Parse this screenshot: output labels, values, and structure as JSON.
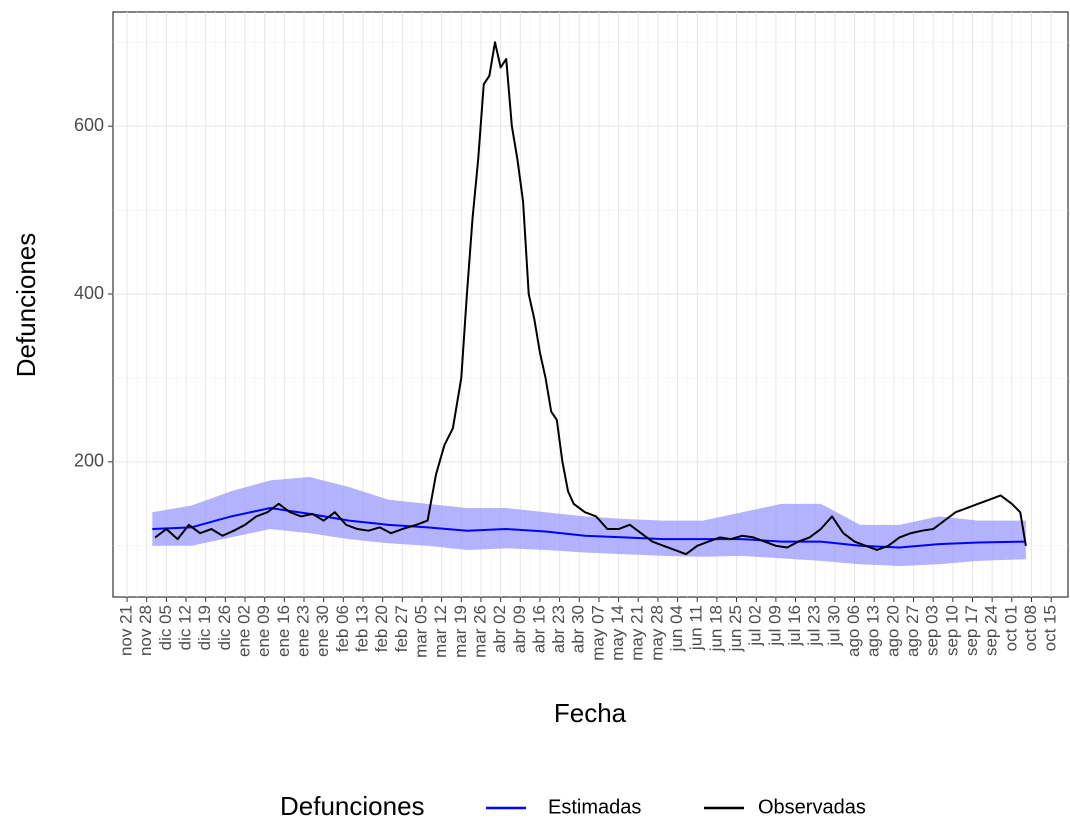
{
  "chart_data": {
    "type": "line",
    "x_label": "Fecha",
    "y_label": "Defunciones",
    "legend_title": "Defunciones",
    "legend_position": "bottom",
    "grid": true,
    "xlim": [
      "11-16",
      "10-21"
    ],
    "ylim": [
      39,
      736
    ],
    "yticks": [
      200,
      400,
      600
    ],
    "xticks": [
      {
        "value": "11-21",
        "label": "nov 21"
      },
      {
        "value": "11-28",
        "label": "nov 28"
      },
      {
        "value": "12-05",
        "label": "dic 05"
      },
      {
        "value": "12-12",
        "label": "dic 12"
      },
      {
        "value": "12-19",
        "label": "dic 19"
      },
      {
        "value": "12-26",
        "label": "dic 26"
      },
      {
        "value": "01-02",
        "label": "ene 02"
      },
      {
        "value": "01-09",
        "label": "ene 09"
      },
      {
        "value": "01-16",
        "label": "ene 16"
      },
      {
        "value": "01-23",
        "label": "ene 23"
      },
      {
        "value": "01-30",
        "label": "ene 30"
      },
      {
        "value": "02-06",
        "label": "feb 06"
      },
      {
        "value": "02-13",
        "label": "feb 13"
      },
      {
        "value": "02-20",
        "label": "feb 20"
      },
      {
        "value": "02-27",
        "label": "feb 27"
      },
      {
        "value": "03-05",
        "label": "mar 05"
      },
      {
        "value": "03-12",
        "label": "mar 12"
      },
      {
        "value": "03-19",
        "label": "mar 19"
      },
      {
        "value": "03-26",
        "label": "mar 26"
      },
      {
        "value": "04-02",
        "label": "abr 02"
      },
      {
        "value": "04-09",
        "label": "abr 09"
      },
      {
        "value": "04-16",
        "label": "abr 16"
      },
      {
        "value": "04-23",
        "label": "abr 23"
      },
      {
        "value": "04-30",
        "label": "abr 30"
      },
      {
        "value": "05-07",
        "label": "may 07"
      },
      {
        "value": "05-14",
        "label": "may 14"
      },
      {
        "value": "05-21",
        "label": "may 21"
      },
      {
        "value": "05-28",
        "label": "may 28"
      },
      {
        "value": "06-04",
        "label": "jun 04"
      },
      {
        "value": "06-11",
        "label": "jun 11"
      },
      {
        "value": "06-18",
        "label": "jun 18"
      },
      {
        "value": "06-25",
        "label": "jun 25"
      },
      {
        "value": "07-02",
        "label": "jul 02"
      },
      {
        "value": "07-09",
        "label": "jul 09"
      },
      {
        "value": "07-16",
        "label": "jul 16"
      },
      {
        "value": "07-23",
        "label": "jul 23"
      },
      {
        "value": "07-30",
        "label": "jul 30"
      },
      {
        "value": "08-06",
        "label": "ago 06"
      },
      {
        "value": "08-13",
        "label": "ago 13"
      },
      {
        "value": "08-20",
        "label": "ago 20"
      },
      {
        "value": "08-27",
        "label": "ago 27"
      },
      {
        "value": "09-03",
        "label": "sep 03"
      },
      {
        "value": "09-10",
        "label": "sep 10"
      },
      {
        "value": "09-17",
        "label": "sep 17"
      },
      {
        "value": "09-24",
        "label": "sep 24"
      },
      {
        "value": "10-01",
        "label": "oct 01"
      },
      {
        "value": "10-08",
        "label": "oct 08"
      },
      {
        "value": "10-15",
        "label": "oct 15"
      }
    ],
    "series": [
      {
        "name": "Estimadas",
        "color": "#0000ff",
        "band_color": "#9999ff",
        "x": [
          "11-30",
          "12-14",
          "12-28",
          "01-11",
          "01-25",
          "02-08",
          "02-22",
          "03-07",
          "03-21",
          "04-04",
          "04-18",
          "05-02",
          "05-16",
          "05-30",
          "06-13",
          "06-27",
          "07-11",
          "07-25",
          "08-08",
          "08-22",
          "09-05",
          "09-19",
          "10-06"
        ],
        "values": [
          120,
          122,
          135,
          145,
          138,
          130,
          125,
          122,
          118,
          120,
          117,
          112,
          110,
          108,
          108,
          108,
          105,
          105,
          100,
          98,
          102,
          104,
          105
        ],
        "lower": [
          100,
          100,
          110,
          120,
          115,
          108,
          103,
          100,
          95,
          97,
          95,
          92,
          90,
          88,
          87,
          88,
          85,
          82,
          78,
          76,
          78,
          82,
          84
        ],
        "upper": [
          140,
          148,
          165,
          178,
          182,
          170,
          155,
          150,
          145,
          145,
          140,
          135,
          132,
          130,
          130,
          140,
          150,
          150,
          125,
          125,
          135,
          130,
          130
        ]
      },
      {
        "name": "Observadas",
        "color": "#000000",
        "x": [
          "12-01",
          "12-05",
          "12-09",
          "12-13",
          "12-17",
          "12-21",
          "12-25",
          "12-29",
          "01-02",
          "01-06",
          "01-10",
          "01-14",
          "01-18",
          "01-22",
          "01-26",
          "01-30",
          "02-03",
          "02-07",
          "02-11",
          "02-15",
          "02-19",
          "02-23",
          "02-27",
          "03-03",
          "03-07",
          "03-10",
          "03-13",
          "03-16",
          "03-19",
          "03-21",
          "03-23",
          "03-25",
          "03-27",
          "03-29",
          "03-31",
          "04-02",
          "04-04",
          "04-06",
          "04-08",
          "04-10",
          "04-12",
          "04-14",
          "04-16",
          "04-18",
          "04-20",
          "04-22",
          "04-24",
          "04-26",
          "04-28",
          "05-02",
          "05-06",
          "05-10",
          "05-14",
          "05-18",
          "05-22",
          "05-26",
          "05-30",
          "06-03",
          "06-07",
          "06-11",
          "06-15",
          "06-19",
          "06-23",
          "06-27",
          "07-01",
          "07-05",
          "07-09",
          "07-13",
          "07-17",
          "07-21",
          "07-25",
          "07-29",
          "08-02",
          "08-06",
          "08-10",
          "08-14",
          "08-18",
          "08-22",
          "08-26",
          "08-30",
          "09-03",
          "09-07",
          "09-11",
          "09-15",
          "09-19",
          "09-23",
          "09-27",
          "10-01",
          "10-04",
          "10-06"
        ],
        "values": [
          110,
          120,
          108,
          125,
          115,
          120,
          112,
          118,
          125,
          135,
          140,
          150,
          140,
          135,
          138,
          130,
          140,
          125,
          120,
          118,
          122,
          115,
          120,
          125,
          130,
          185,
          220,
          240,
          300,
          400,
          490,
          560,
          650,
          660,
          700,
          670,
          680,
          600,
          560,
          510,
          400,
          370,
          330,
          300,
          260,
          250,
          200,
          165,
          150,
          140,
          135,
          120,
          120,
          125,
          115,
          105,
          100,
          95,
          90,
          100,
          105,
          110,
          108,
          112,
          110,
          105,
          100,
          98,
          105,
          110,
          120,
          135,
          115,
          105,
          100,
          95,
          100,
          110,
          115,
          118,
          120,
          130,
          140,
          145,
          150,
          155,
          160,
          150,
          140,
          100
        ]
      }
    ]
  }
}
